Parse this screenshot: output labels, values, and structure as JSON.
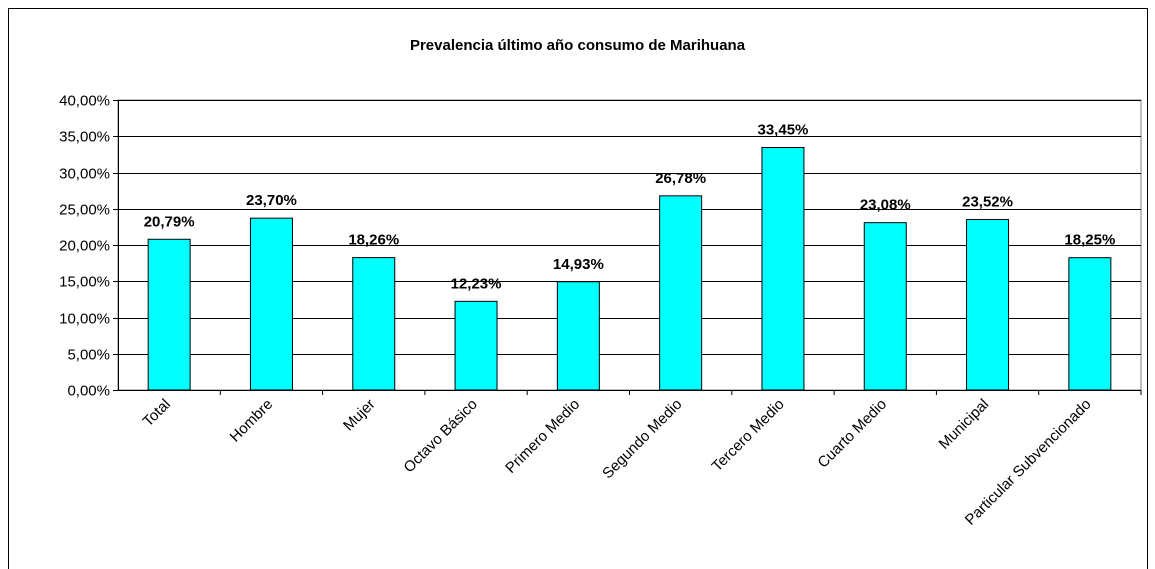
{
  "chart_data": {
    "type": "bar",
    "title": "Prevalencia último año consumo de Marihuana",
    "xlabel": "",
    "ylabel": "",
    "categories": [
      "Total",
      "Hombre",
      "Mujer",
      "Octavo Básico",
      "Primero Medio",
      "Segundo Medio",
      "Tercero Medio",
      "Cuarto Medio",
      "Municipal",
      "Particular Subvencionado"
    ],
    "values": [
      20.79,
      23.7,
      18.26,
      12.23,
      14.93,
      26.78,
      33.45,
      23.08,
      23.52,
      18.25
    ],
    "value_labels": [
      "20,79%",
      "23,70%",
      "18,26%",
      "12,23%",
      "14,93%",
      "26,78%",
      "33,45%",
      "23,08%",
      "23,52%",
      "18,25%"
    ],
    "ylim": [
      0,
      40
    ],
    "yticks": [
      "0,00%",
      "5,00%",
      "10,00%",
      "15,00%",
      "20,00%",
      "25,00%",
      "30,00%",
      "35,00%",
      "40,00%"
    ],
    "grid": true,
    "legend": "none",
    "colors": {
      "bar": "#00FFFF",
      "bar_stroke": "#000000",
      "plot_bg": "#FFFFFF",
      "grid": "#000000"
    }
  }
}
